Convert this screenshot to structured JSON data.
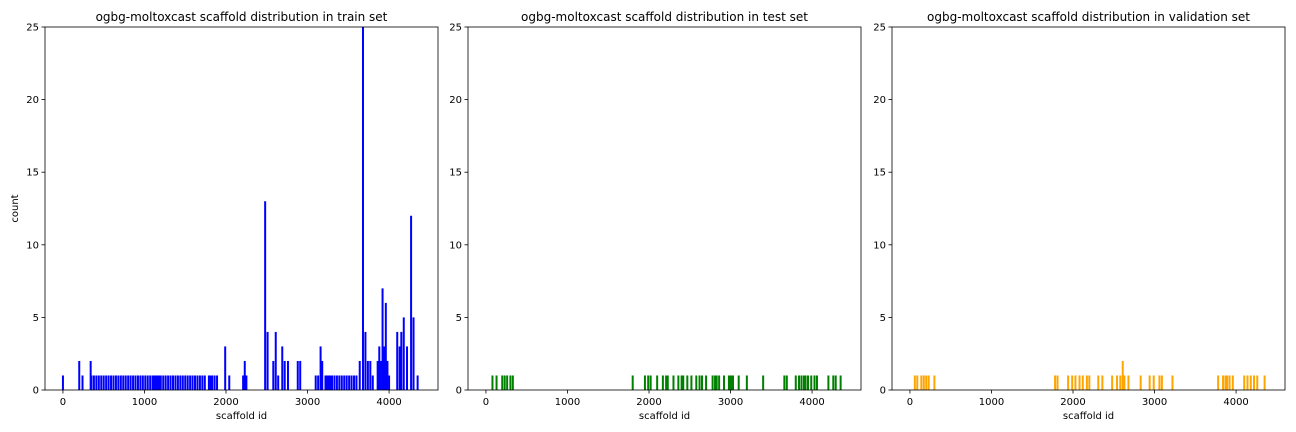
{
  "chart_data": [
    {
      "type": "bar",
      "title": "ogbg-moltoxcast scaffold distribution in train set",
      "xlabel": "scaffold id",
      "ylabel": "count",
      "xlim": [
        -220,
        4600
      ],
      "ylim": [
        0,
        25
      ],
      "xticks": [
        0,
        1000,
        2000,
        3000,
        4000
      ],
      "yticks": [
        0,
        5,
        10,
        15,
        20,
        25
      ],
      "grid": false,
      "color": "#0000ff",
      "x": [
        0,
        200,
        240,
        340,
        350,
        380,
        410,
        440,
        470,
        500,
        530,
        560,
        590,
        620,
        650,
        680,
        710,
        740,
        770,
        800,
        830,
        860,
        890,
        920,
        950,
        980,
        1010,
        1040,
        1070,
        1100,
        1120,
        1140,
        1160,
        1180,
        1200,
        1230,
        1260,
        1290,
        1320,
        1350,
        1380,
        1410,
        1440,
        1470,
        1500,
        1530,
        1560,
        1590,
        1620,
        1650,
        1680,
        1710,
        1740,
        1790,
        1810,
        1830,
        1860,
        1890,
        1990,
        2040,
        2210,
        2230,
        2250,
        2480,
        2510,
        2580,
        2610,
        2640,
        2690,
        2720,
        2760,
        2880,
        2910,
        3100,
        3130,
        3160,
        3180,
        3220,
        3240,
        3260,
        3280,
        3300,
        3330,
        3360,
        3390,
        3420,
        3450,
        3480,
        3510,
        3540,
        3570,
        3600,
        3640,
        3680,
        3710,
        3740,
        3770,
        3800,
        3860,
        3880,
        3900,
        3920,
        3940,
        3960,
        3980,
        4000,
        4100,
        4130,
        4150,
        4180,
        4220,
        4270,
        4300,
        4350
      ],
      "values": [
        1,
        2,
        1,
        2,
        1,
        1,
        1,
        1,
        1,
        1,
        1,
        1,
        1,
        1,
        1,
        1,
        1,
        1,
        1,
        1,
        1,
        1,
        1,
        1,
        1,
        1,
        1,
        1,
        1,
        1,
        1,
        1,
        1,
        1,
        1,
        1,
        1,
        1,
        1,
        1,
        1,
        1,
        1,
        1,
        1,
        1,
        1,
        1,
        1,
        1,
        1,
        1,
        1,
        1,
        1,
        1,
        1,
        1,
        3,
        1,
        1,
        2,
        1,
        13,
        4,
        2,
        4,
        1,
        3,
        2,
        2,
        2,
        2,
        1,
        1,
        3,
        2,
        1,
        1,
        1,
        1,
        1,
        1,
        1,
        1,
        1,
        1,
        1,
        1,
        1,
        1,
        1,
        2,
        25,
        4,
        2,
        2,
        1,
        2,
        3,
        2,
        7,
        3,
        6,
        2,
        1,
        4,
        3,
        4,
        5,
        3,
        12,
        5,
        1
      ]
    },
    {
      "type": "bar",
      "title": "ogbg-moltoxcast scaffold distribution in test set",
      "xlabel": "scaffold id",
      "ylabel": "",
      "xlim": [
        -220,
        4600
      ],
      "ylim": [
        0,
        25
      ],
      "xticks": [
        0,
        1000,
        2000,
        3000,
        4000
      ],
      "yticks": [
        0,
        5,
        10,
        15,
        20,
        25
      ],
      "grid": false,
      "color": "#008000",
      "x": [
        80,
        130,
        200,
        230,
        260,
        300,
        330,
        1800,
        1950,
        1990,
        2020,
        2100,
        2170,
        2210,
        2230,
        2300,
        2360,
        2400,
        2420,
        2470,
        2520,
        2580,
        2620,
        2650,
        2700,
        2780,
        2810,
        2830,
        2860,
        2920,
        2980,
        3000,
        3010,
        3030,
        3100,
        3200,
        3400,
        3660,
        3690,
        3800,
        3840,
        3870,
        3900,
        3920,
        3950,
        3990,
        4030,
        4060,
        4200,
        4260,
        4290,
        4350
      ],
      "values": [
        1,
        1,
        1,
        1,
        1,
        1,
        1,
        1,
        1,
        1,
        1,
        1,
        1,
        1,
        1,
        1,
        1,
        1,
        1,
        1,
        1,
        1,
        1,
        1,
        1,
        1,
        1,
        1,
        1,
        1,
        1,
        1,
        1,
        1,
        1,
        1,
        1,
        1,
        1,
        1,
        1,
        1,
        1,
        1,
        1,
        1,
        1,
        1,
        1,
        1,
        1,
        1
      ]
    },
    {
      "type": "bar",
      "title": "ogbg-moltoxcast scaffold distribution in validation set",
      "xlabel": "scaffold id",
      "ylabel": "",
      "xlim": [
        -220,
        4600
      ],
      "ylim": [
        0,
        25
      ],
      "xticks": [
        0,
        1000,
        2000,
        3000,
        4000
      ],
      "yticks": [
        0,
        5,
        10,
        15,
        20,
        25
      ],
      "grid": false,
      "color": "#ffa500",
      "x": [
        60,
        90,
        140,
        170,
        200,
        230,
        300,
        1780,
        1810,
        1940,
        1990,
        2030,
        2080,
        2120,
        2170,
        2200,
        2310,
        2360,
        2480,
        2540,
        2580,
        2610,
        2630,
        2680,
        2830,
        2940,
        2990,
        3060,
        3090,
        3220,
        3780,
        3840,
        3870,
        3890,
        3920,
        3960,
        4100,
        4140,
        4180,
        4220,
        4260,
        4350
      ],
      "values": [
        1,
        1,
        1,
        1,
        1,
        1,
        1,
        1,
        1,
        1,
        1,
        1,
        1,
        1,
        1,
        1,
        1,
        1,
        1,
        1,
        1,
        2,
        1,
        1,
        1,
        1,
        1,
        1,
        1,
        1,
        1,
        1,
        1,
        1,
        1,
        1,
        1,
        1,
        1,
        1,
        1,
        1
      ]
    }
  ]
}
